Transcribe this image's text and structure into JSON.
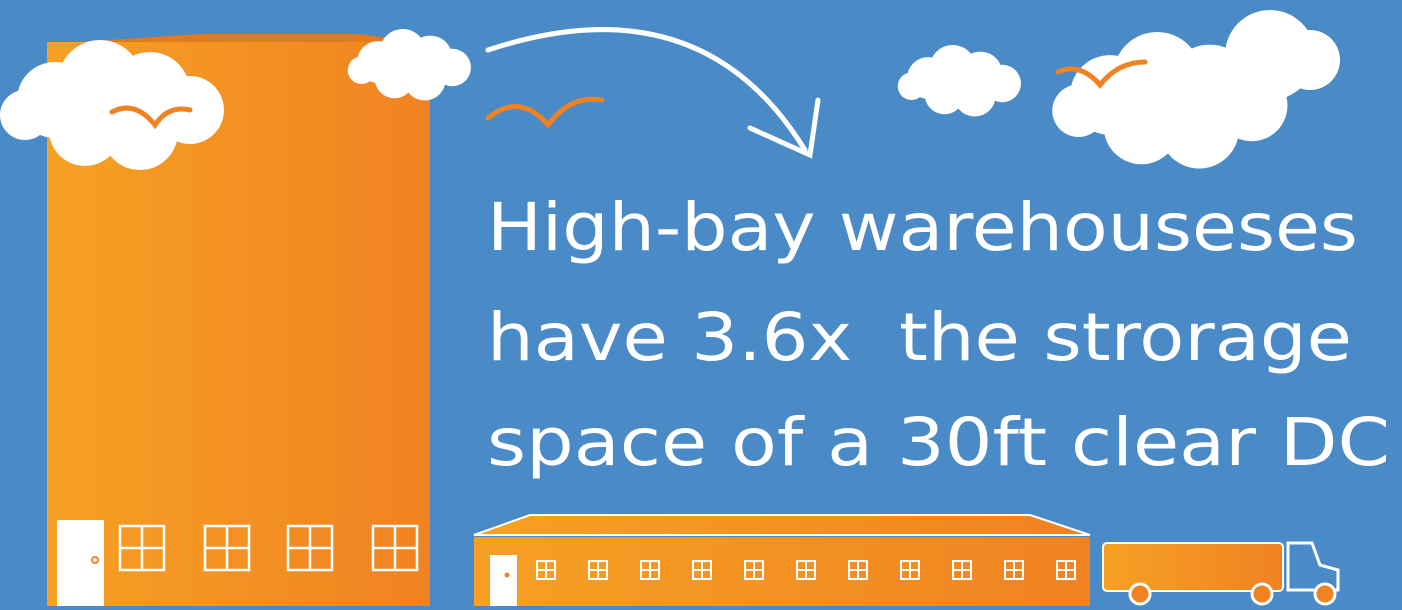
{
  "headline": {
    "lines": [
      "High-bay warehouseses",
      "have 3.6x  the strorage",
      "space of a 30ft clear DC"
    ]
  }
}
